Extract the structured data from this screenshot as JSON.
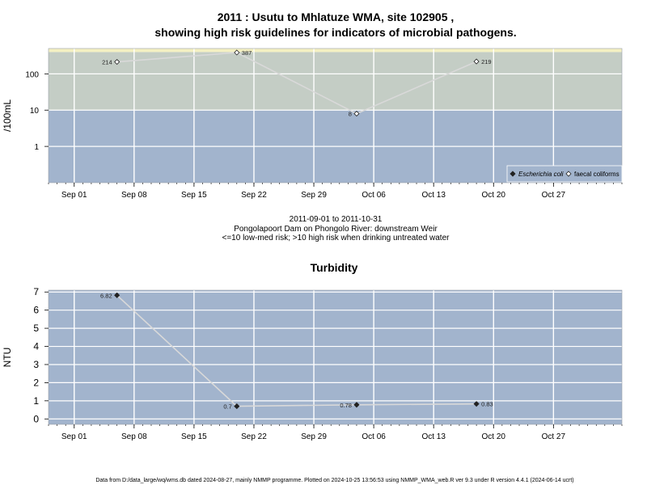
{
  "chart_data": [
    {
      "type": "line",
      "title": "2011 : Usutu to Mhlatuze WMA, site 102905 ,",
      "subtitle": "showing high risk guidelines for indicators of microbial pathogens.",
      "ylabel": "/100mL",
      "y_scale": "log",
      "y_ticks": [
        1,
        10,
        100
      ],
      "y_tick_labels": [
        "1",
        "10",
        "100"
      ],
      "ylim": [
        0.1,
        500
      ],
      "x_ticks": [
        "Sep 01",
        "Sep 08",
        "Sep 15",
        "Sep 22",
        "Sep 29",
        "Oct 06",
        "Oct 13",
        "Oct 20",
        "Oct 27"
      ],
      "xlim": [
        "2011-08-29",
        "2011-11-04"
      ],
      "grid": true,
      "guideline_bands": [
        {
          "from": 0.1,
          "to": 10,
          "color": "#a2b4cd"
        },
        {
          "from": 10,
          "to": 400,
          "color": "#c4cdc5"
        },
        {
          "from": 400,
          "to": 500,
          "color": "#f4f0c2"
        }
      ],
      "legend_position": "bottom-right",
      "legend": [
        "Escherichia coli",
        "faecal coliforms"
      ],
      "series": [
        {
          "name": "faecal coliforms",
          "marker": "open-diamond",
          "x": [
            "2011-09-06",
            "2011-09-20",
            "2011-10-04",
            "2011-10-18"
          ],
          "y": [
            214,
            387,
            8,
            219
          ],
          "labels": [
            "214",
            "387",
            "8",
            "219"
          ]
        }
      ],
      "footer_lines": [
        "2011-09-01 to 2011-10-31",
        "Pongolapoort Dam on Phongolo River: downstream Weir",
        "<=10 low-med risk; >10 high risk when drinking untreated water"
      ]
    },
    {
      "type": "line",
      "title": "Turbidity",
      "ylabel": "NTU",
      "y_scale": "linear",
      "ylim": [
        -0.3,
        7.1
      ],
      "y_ticks": [
        0,
        1,
        2,
        3,
        4,
        5,
        6,
        7
      ],
      "x_ticks": [
        "Sep 01",
        "Sep 08",
        "Sep 15",
        "Sep 22",
        "Sep 29",
        "Oct 06",
        "Oct 13",
        "Oct 20",
        "Oct 27"
      ],
      "xlim": [
        "2011-08-29",
        "2011-11-04"
      ],
      "grid": true,
      "series": [
        {
          "name": "",
          "marker": "filled-diamond",
          "x": [
            "2011-09-06",
            "2011-09-20",
            "2011-10-04",
            "2011-10-18"
          ],
          "y": [
            6.82,
            0.7,
            0.78,
            0.83
          ],
          "labels": [
            "6.82",
            "0.7",
            "0.78",
            "0.83"
          ]
        }
      ]
    }
  ],
  "footer": "Data from D:/data_large/wq/wms.db dated 2024-08-27, mainly NMMP programme. Plotted on 2024-10-25 13:56:53 using NMMP_WMA_web.R ver 9.3 under R version 4.4.1 (2024-06-14 ucrt)",
  "colors": {
    "low_band": "#a2b4cd",
    "high_band": "#c4cdc5",
    "top_band": "#f4f0c2",
    "grid": "#ffffff",
    "line": "#d9d9d9"
  }
}
